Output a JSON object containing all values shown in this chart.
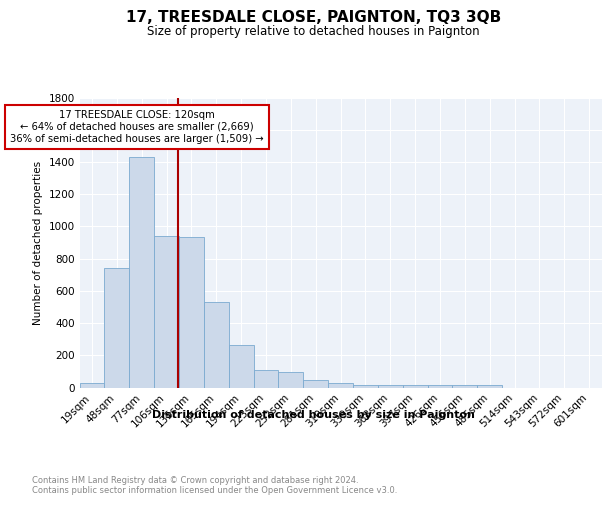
{
  "title": "17, TREESDALE CLOSE, PAIGNTON, TQ3 3QB",
  "subtitle": "Size of property relative to detached houses in Paignton",
  "xlabel": "Distribution of detached houses by size in Paignton",
  "ylabel": "Number of detached properties",
  "categories": [
    "19sqm",
    "48sqm",
    "77sqm",
    "106sqm",
    "135sqm",
    "165sqm",
    "194sqm",
    "223sqm",
    "252sqm",
    "281sqm",
    "310sqm",
    "339sqm",
    "368sqm",
    "397sqm",
    "426sqm",
    "456sqm",
    "485sqm",
    "514sqm",
    "543sqm",
    "572sqm",
    "601sqm"
  ],
  "values": [
    25,
    740,
    1430,
    940,
    935,
    530,
    265,
    110,
    95,
    45,
    25,
    15,
    15,
    15,
    15,
    15,
    15,
    0,
    0,
    0,
    0
  ],
  "bar_color": "#ccd9ea",
  "bar_edge_color": "#7aaad0",
  "red_line_x": 3.47,
  "annotation_text": "17 TREESDALE CLOSE: 120sqm\n← 64% of detached houses are smaller (2,669)\n36% of semi-detached houses are larger (1,509) →",
  "annotation_box_color": "#ffffff",
  "annotation_box_edge": "#cc0000",
  "red_line_color": "#aa0000",
  "footnote": "Contains HM Land Registry data © Crown copyright and database right 2024.\nContains public sector information licensed under the Open Government Licence v3.0.",
  "bg_color": "#edf2f9",
  "grid_color": "#ffffff",
  "ylim": [
    0,
    1800
  ],
  "yticks": [
    0,
    200,
    400,
    600,
    800,
    1000,
    1200,
    1400,
    1600,
    1800
  ]
}
